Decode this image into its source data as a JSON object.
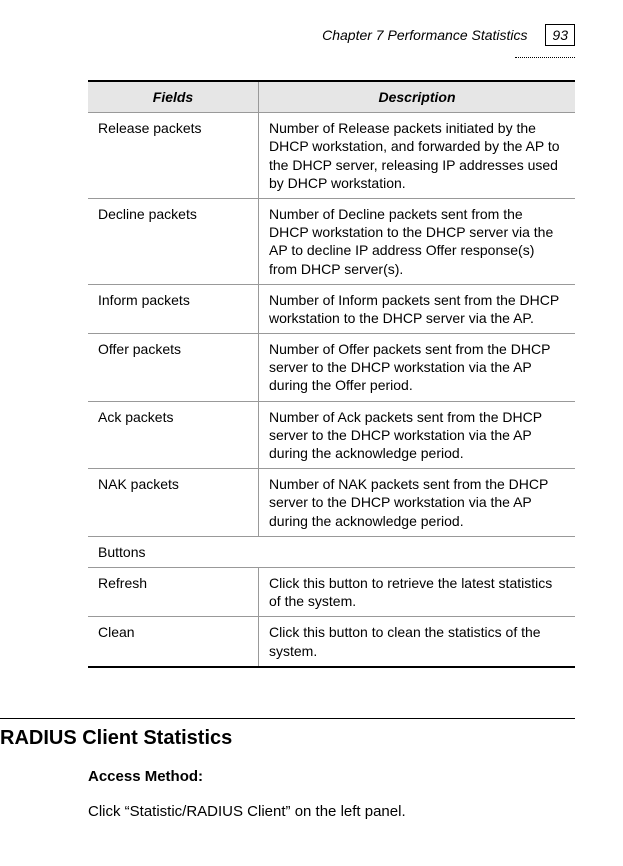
{
  "header": {
    "chapter": "Chapter 7 Performance Statistics",
    "page_number": "93"
  },
  "table": {
    "col_fields": "Fields",
    "col_description": "Description",
    "rows": [
      {
        "field": "Release packets",
        "desc": "Number of Release packets initiated by the DHCP workstation, and forwarded by the AP to the DHCP server, releasing IP addresses used by DHCP workstation."
      },
      {
        "field": "Decline packets",
        "desc": "Number of Decline packets sent from the DHCP workstation to the DHCP server via the AP to decline IP address Offer response(s) from DHCP server(s)."
      },
      {
        "field": "Inform packets",
        "desc": "Number of Inform packets sent from the DHCP workstation to the DHCP server via the AP."
      },
      {
        "field": "Offer packets",
        "desc": "Number of Offer packets sent from the DHCP server to the DHCP workstation via the AP during the Offer period."
      },
      {
        "field": "Ack packets",
        "desc": "Number of Ack packets sent from the DHCP server to the DHCP workstation via the AP during the acknowledge period."
      },
      {
        "field": "NAK packets",
        "desc": "Number of NAK packets sent from the DHCP server to the DHCP workstation via the AP during the acknowledge period."
      }
    ],
    "section_label": "Buttons",
    "button_rows": [
      {
        "field": "Refresh",
        "desc": "Click this button to retrieve the latest statistics of the system."
      },
      {
        "field": "Clean",
        "desc": "Click this button to clean the statistics of the system."
      }
    ]
  },
  "section": {
    "title": "RADIUS Client Statistics",
    "subtitle": "Access Method:",
    "body": "Click “Statistic/RADIUS Client” on the left panel."
  }
}
